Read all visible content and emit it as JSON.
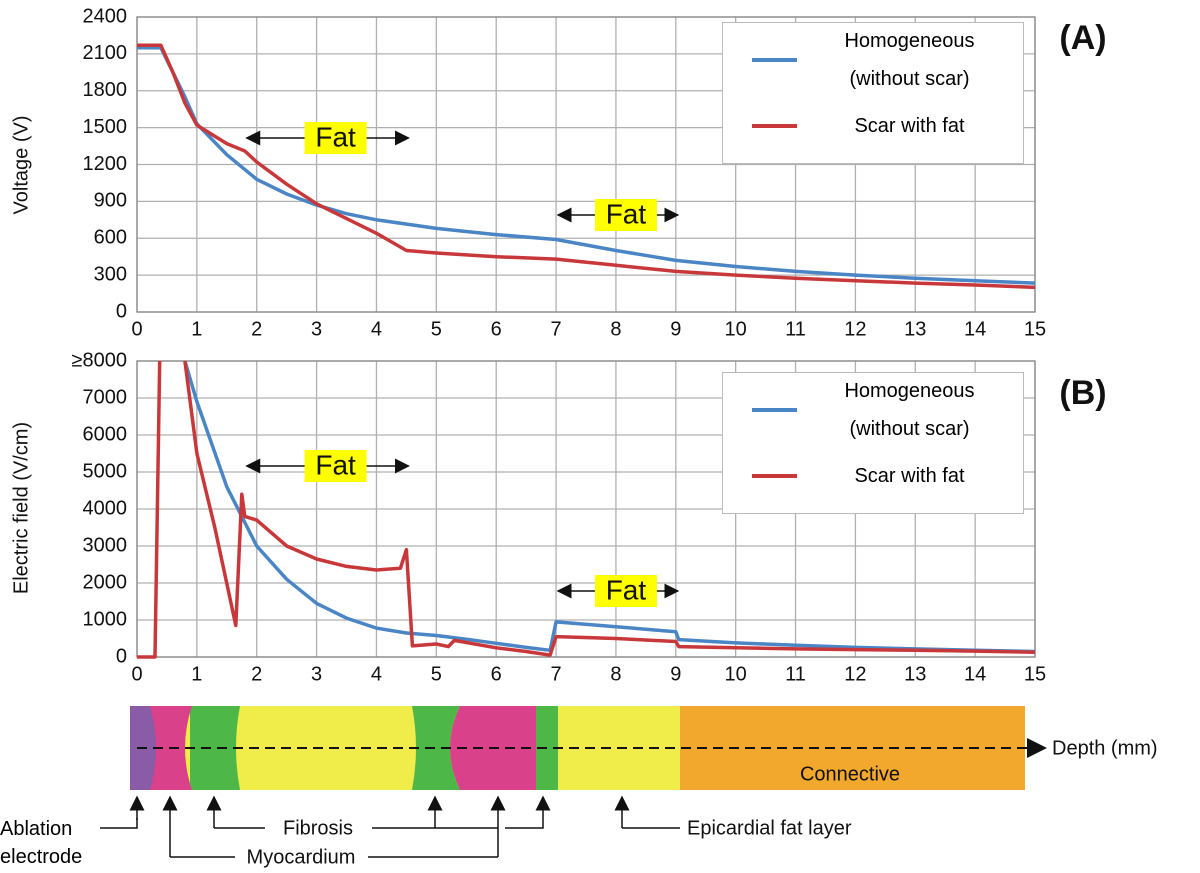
{
  "chart_data": [
    {
      "type": "line",
      "panel_label": "(A)",
      "y_label": "Voltage (V)",
      "xlim": [
        0,
        15
      ],
      "xticks": [
        0,
        1,
        2,
        3,
        4,
        5,
        6,
        7,
        8,
        9,
        10,
        11,
        12,
        13,
        14,
        15
      ],
      "ylim": [
        0,
        2400
      ],
      "yticks": [
        0,
        300,
        600,
        900,
        1200,
        1500,
        1800,
        2100,
        2400
      ],
      "grid": true,
      "annotations": [
        "Fat",
        "Fat"
      ],
      "series": [
        {
          "name": "Homogeneous (without scar)",
          "color": "#4a86c5",
          "x": [
            0,
            0.4,
            0.6,
            0.8,
            1,
            1.5,
            2,
            2.5,
            3,
            3.5,
            4,
            5,
            6,
            7,
            8,
            9,
            10,
            11,
            12,
            13,
            14,
            15
          ],
          "values": [
            2150,
            2150,
            1950,
            1750,
            1530,
            1280,
            1080,
            960,
            870,
            800,
            750,
            680,
            630,
            590,
            500,
            420,
            370,
            330,
            300,
            275,
            255,
            235
          ]
        },
        {
          "name": "Scar with fat",
          "color": "#c8383a",
          "x": [
            0,
            0.4,
            0.6,
            0.8,
            1,
            1.5,
            1.8,
            2,
            2.5,
            3,
            3.5,
            4,
            4.5,
            5,
            6,
            7,
            8,
            9,
            10,
            11,
            12,
            13,
            14,
            15
          ],
          "values": [
            2170,
            2170,
            1950,
            1700,
            1520,
            1370,
            1310,
            1220,
            1040,
            880,
            760,
            640,
            500,
            480,
            450,
            430,
            380,
            330,
            300,
            275,
            255,
            235,
            220,
            200
          ]
        }
      ]
    },
    {
      "type": "line",
      "panel_label": "(B)",
      "y_label": "Electric field (V/cm)",
      "xlim": [
        0,
        15
      ],
      "xticks": [
        0,
        1,
        2,
        3,
        4,
        5,
        6,
        7,
        8,
        9,
        10,
        11,
        12,
        13,
        14,
        15
      ],
      "ylim": [
        0,
        8000
      ],
      "yticks": [
        0,
        1000,
        2000,
        3000,
        4000,
        5000,
        6000,
        7000,
        {
          "value": 8000,
          "label": "≥8000"
        }
      ],
      "grid": true,
      "annotations": [
        "Fat",
        "Fat"
      ],
      "series": [
        {
          "name": "Homogeneous (without scar)",
          "color": "#4a86c5",
          "x": [
            0.8,
            1,
            1.5,
            2,
            2.5,
            3,
            3.5,
            4,
            4.5,
            5,
            5.5,
            6,
            6.5,
            6.9,
            7,
            8,
            9,
            9.05,
            10,
            11,
            12,
            13,
            14,
            15
          ],
          "values": [
            8000,
            6900,
            4600,
            3000,
            2100,
            1450,
            1050,
            780,
            650,
            580,
            480,
            370,
            260,
            180,
            950,
            820,
            680,
            470,
            380,
            320,
            260,
            220,
            180,
            150
          ]
        },
        {
          "name": "Scar with fat",
          "color": "#c8383a",
          "x": [
            0,
            0.3,
            0.38,
            0.6,
            0.8,
            1,
            1.3,
            1.65,
            1.75,
            1.8,
            2,
            2.5,
            3,
            3.5,
            4,
            4.4,
            4.5,
            4.6,
            5,
            5.2,
            5.3,
            6,
            6.5,
            6.9,
            7,
            8,
            9,
            9.05,
            10,
            11,
            12,
            13,
            14,
            15
          ],
          "values": [
            0,
            0,
            8000,
            null,
            8000,
            5500,
            3500,
            850,
            4400,
            3800,
            3700,
            3000,
            2650,
            2450,
            2350,
            2400,
            2900,
            300,
            350,
            280,
            450,
            250,
            150,
            50,
            550,
            500,
            420,
            280,
            250,
            220,
            200,
            180,
            160,
            130
          ]
        }
      ]
    }
  ],
  "diagram": {
    "axis_label": "Depth (mm)",
    "region_label": "Connective",
    "labels": [
      "Ablation electrode",
      "Fibrosis",
      "Myocardium",
      "Epicardial fat layer"
    ]
  }
}
